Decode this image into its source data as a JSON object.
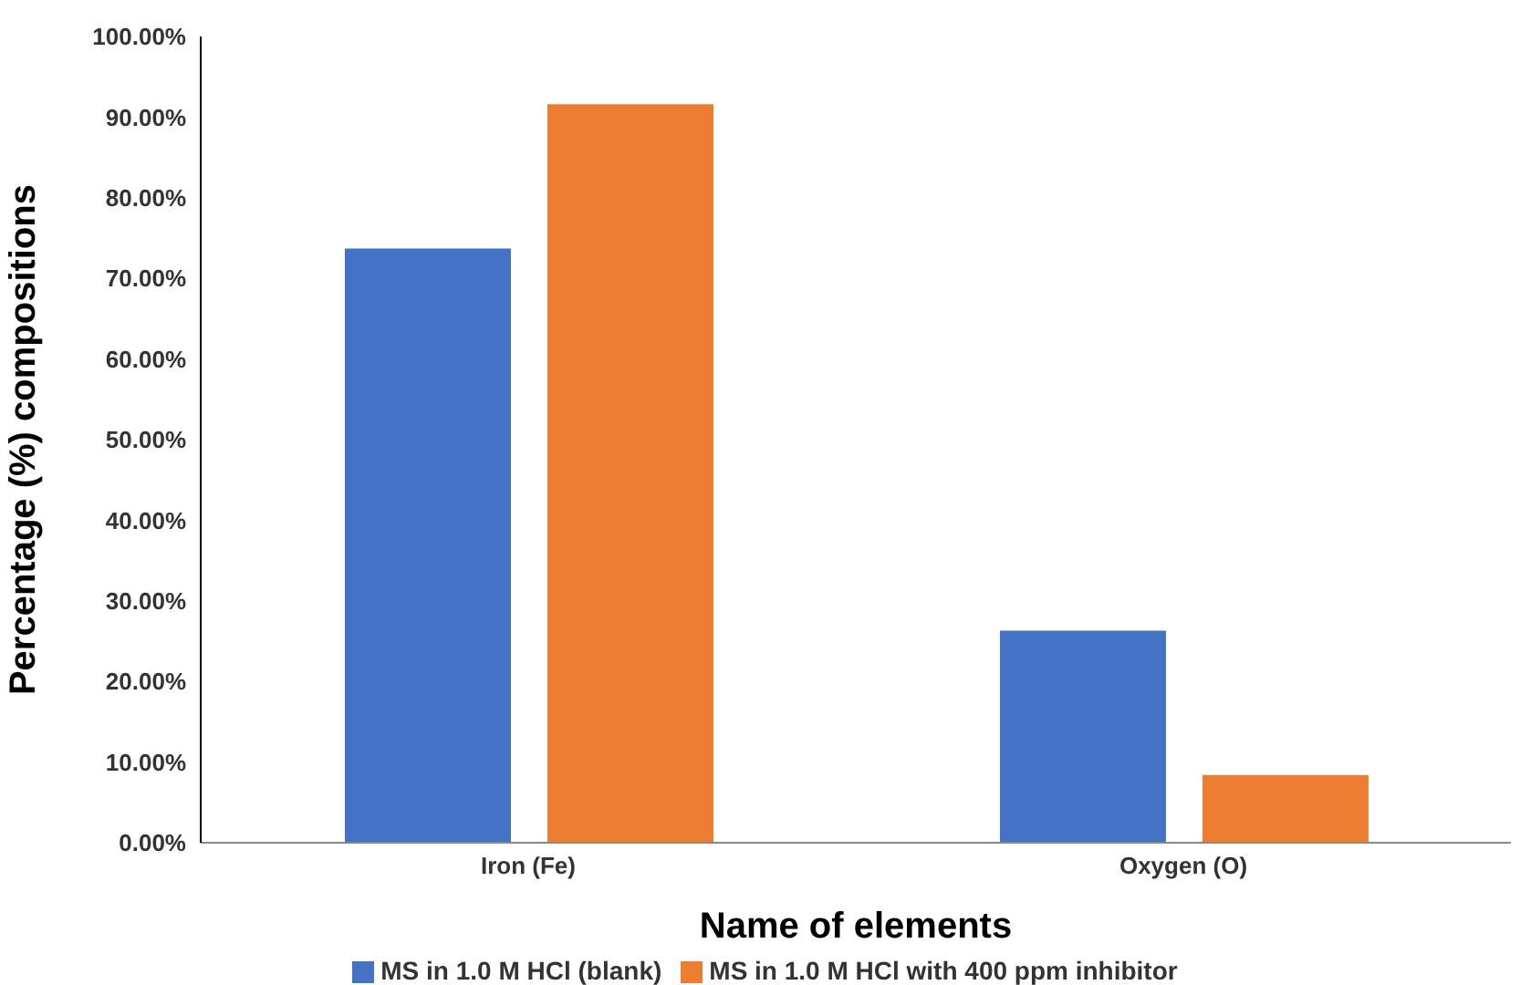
{
  "chart_data": {
    "type": "bar",
    "xlabel": "Name of elements",
    "ylabel": "Percentage (%) compositions",
    "categories": [
      "Iron (Fe)",
      "Oxygen (O)"
    ],
    "series": [
      {
        "name": "MS in 1.0 M HCl (blank)",
        "color": "#4472c4",
        "values": [
          73.7,
          26.3
        ]
      },
      {
        "name": "MS in 1.0 M HCl with 400 ppm inhibitor",
        "color": "#ed7d31",
        "values": [
          91.6,
          8.4
        ]
      }
    ],
    "ylim": [
      0,
      100
    ],
    "yticks": [
      {
        "value": 0,
        "label": "0.00%"
      },
      {
        "value": 10,
        "label": "10.00%"
      },
      {
        "value": 20,
        "label": "20.00%"
      },
      {
        "value": 30,
        "label": "30.00%"
      },
      {
        "value": 40,
        "label": "40.00%"
      },
      {
        "value": 50,
        "label": "50.00%"
      },
      {
        "value": 60,
        "label": "60.00%"
      },
      {
        "value": 70,
        "label": "70.00%"
      },
      {
        "value": 80,
        "label": "80.00%"
      },
      {
        "value": 90,
        "label": "90.00%"
      },
      {
        "value": 100,
        "label": "100.00%"
      }
    ],
    "grid": false,
    "legend": "bottom"
  }
}
